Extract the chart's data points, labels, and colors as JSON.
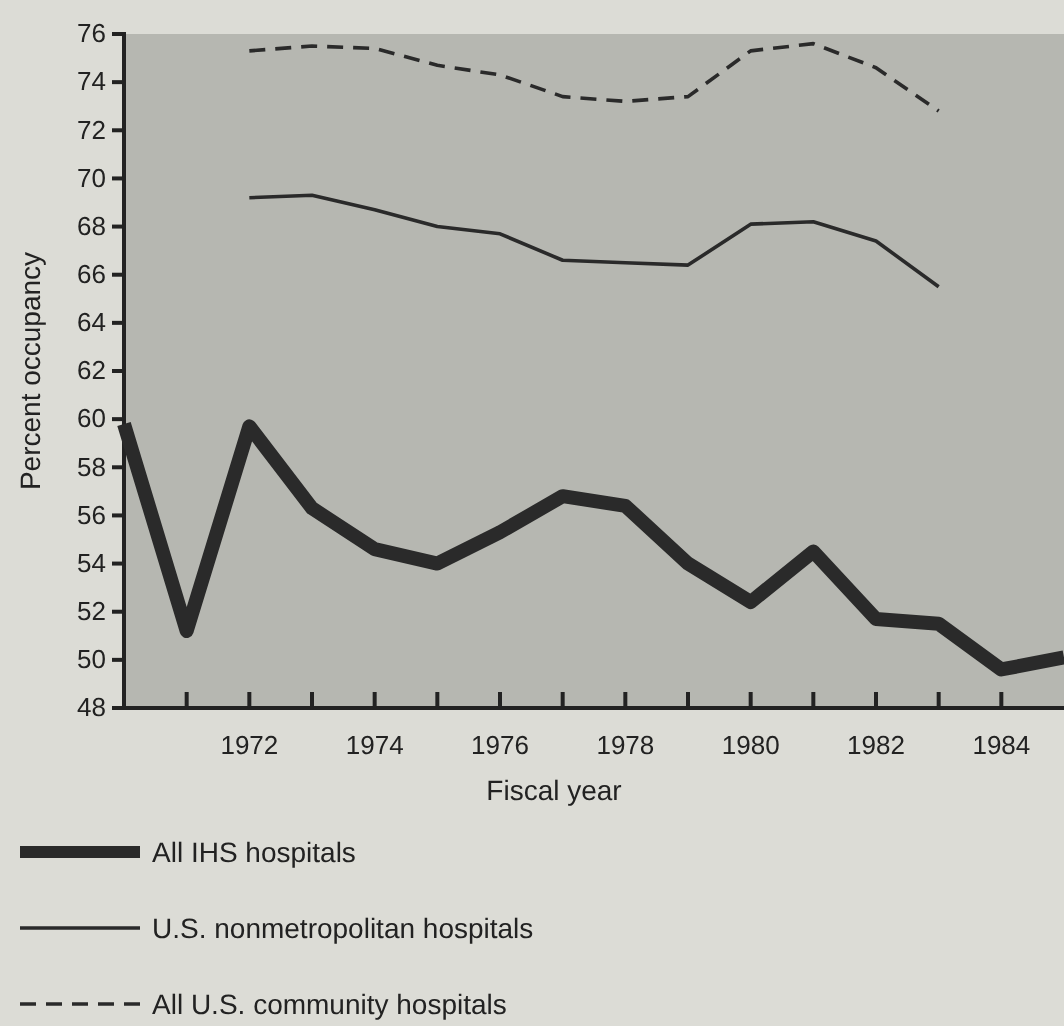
{
  "chart_data": {
    "type": "line",
    "xlabel": "Fiscal year",
    "ylabel": "Percent occupancy",
    "xlim": [
      1970,
      1985
    ],
    "ylim": [
      48,
      76
    ],
    "xticks": [
      {
        "value": 1971,
        "label": null
      },
      1972,
      {
        "value": 1973,
        "label": null
      },
      1974,
      {
        "value": 1975,
        "label": null
      },
      1976,
      {
        "value": 1977,
        "label": null
      },
      1978,
      {
        "value": 1979,
        "label": null
      },
      1980,
      {
        "value": 1981,
        "label": null
      },
      1982,
      {
        "value": 1983,
        "label": null
      },
      1984
    ],
    "yticks": [
      48,
      50,
      52,
      54,
      56,
      58,
      60,
      62,
      64,
      66,
      68,
      70,
      72,
      74,
      76
    ],
    "legend": "bottom",
    "grid": false,
    "marker": "none",
    "series": [
      {
        "name": "All IHS hospitals",
        "color": "#2a2a2a",
        "line_style": "solid",
        "x": [
          1970,
          1971,
          1972,
          1973,
          1974,
          1975,
          1976,
          1977,
          1978,
          1979,
          1980,
          1981,
          1982,
          1983,
          1984,
          1985
        ],
        "values": [
          59.8,
          51.2,
          59.7,
          56.3,
          54.6,
          54.0,
          55.3,
          56.8,
          56.4,
          54.0,
          52.4,
          54.5,
          51.7,
          51.5,
          49.6,
          50.1
        ]
      },
      {
        "name": "U.S. nonmetropolitan hospitals",
        "color": "#2a2a2a",
        "line_style": "solid",
        "x": [
          1972,
          1973,
          1974,
          1975,
          1976,
          1977,
          1978,
          1979,
          1980,
          1981,
          1982,
          1983
        ],
        "values": [
          69.2,
          69.3,
          68.7,
          68.0,
          67.7,
          66.6,
          66.5,
          66.4,
          68.1,
          68.2,
          67.4,
          65.5
        ]
      },
      {
        "name": "All U.S. community hospitals",
        "color": "#2a2a2a",
        "line_style": "dashed",
        "x": [
          1972,
          1973,
          1974,
          1975,
          1976,
          1977,
          1978,
          1979,
          1980,
          1981,
          1982,
          1983
        ],
        "values": [
          75.3,
          75.5,
          75.4,
          74.7,
          74.3,
          73.4,
          73.2,
          73.4,
          75.3,
          75.6,
          74.6,
          72.8
        ]
      }
    ]
  }
}
